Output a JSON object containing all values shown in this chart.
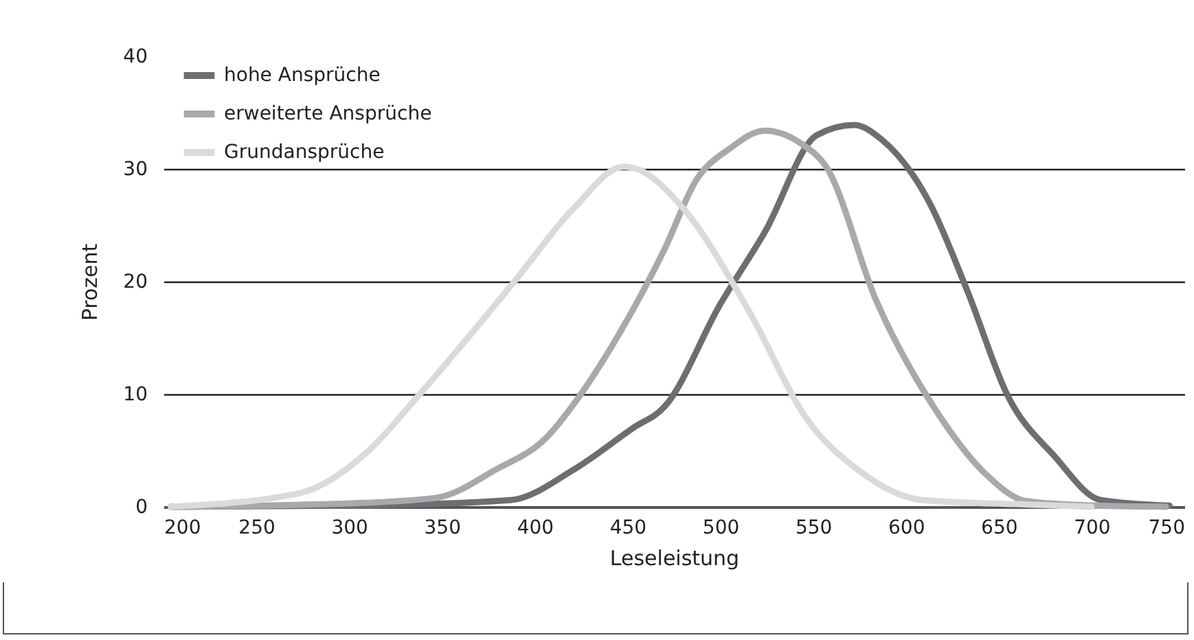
{
  "chart_data": {
    "type": "line",
    "xlabel": "Leseleistung",
    "ylabel": "Prozent",
    "xlim": [
      200,
      750
    ],
    "ylim": [
      0,
      40
    ],
    "xticks": [
      200,
      250,
      300,
      350,
      400,
      450,
      500,
      550,
      600,
      650,
      700,
      750
    ],
    "yticks": [
      0,
      10,
      20,
      30,
      40
    ],
    "grid": "y",
    "legend": "top left",
    "line_style": "solid",
    "marker": "none",
    "series": [
      {
        "name": "hohe Ansprüche",
        "color": "#6d6e71",
        "x": [
          204,
          300,
          387,
          421,
          453,
          470,
          500,
          524,
          552,
          572,
          587,
          613,
          633,
          655,
          680,
          705,
          742
        ],
        "values": [
          0,
          0.1,
          0.6,
          3.3,
          7,
          8.9,
          18,
          24.4,
          33,
          33.9,
          32.6,
          26.9,
          19.2,
          9.8,
          4.5,
          0.6,
          0.1
        ]
      },
      {
        "name": "erweiterte Ansprüche",
        "color": "#a7a9ac",
        "x": [
          204,
          300,
          347,
          379,
          406,
          424,
          446,
          470,
          487,
          505,
          524,
          544,
          557,
          584,
          616,
          643,
          665,
          702,
          740
        ],
        "values": [
          0,
          0.3,
          0.8,
          3.3,
          6.1,
          9.8,
          15.5,
          22.9,
          29,
          31.8,
          33.4,
          32.2,
          30.2,
          18.3,
          8.6,
          2.9,
          0.5,
          0.1,
          0
        ]
      },
      {
        "name": "Grundansprüche",
        "color": "#d9dadb",
        "x": [
          204,
          273,
          310,
          337,
          389,
          421,
          448,
          455,
          480,
          515,
          547,
          574,
          609,
          665,
          700
        ],
        "values": [
          0,
          1.2,
          4.9,
          9.8,
          20,
          26.5,
          30.2,
          30,
          26.5,
          17.5,
          7.7,
          3.3,
          0.6,
          0.2,
          0
        ]
      }
    ]
  }
}
